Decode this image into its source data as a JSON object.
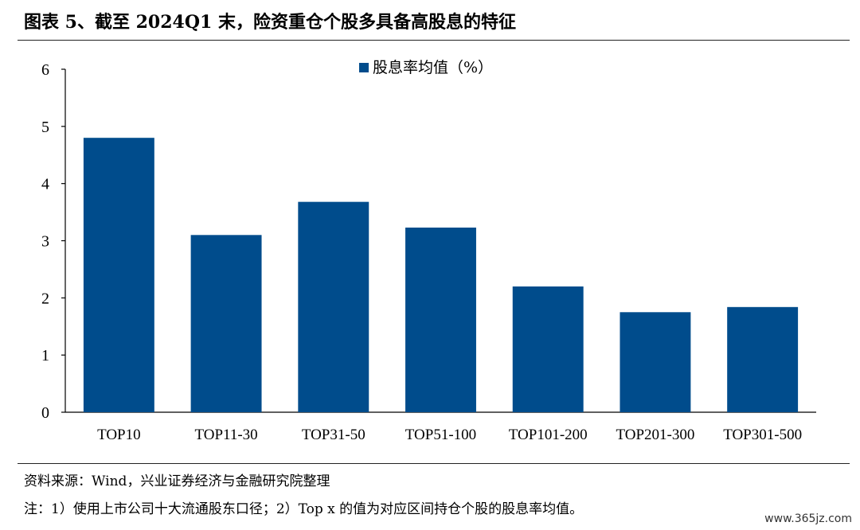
{
  "header": {
    "title": "图表 5、截至 2024Q1 末，险资重仓个股多具备高股息的特征"
  },
  "chart_data": {
    "type": "bar",
    "categories": [
      "TOP10",
      "TOP11-30",
      "TOP31-50",
      "TOP51-100",
      "TOP101-200",
      "TOP201-300",
      "TOP301-500"
    ],
    "series": [
      {
        "name": "股息率均值（%）",
        "values": [
          4.8,
          3.1,
          3.68,
          3.23,
          2.2,
          1.75,
          1.84
        ]
      }
    ],
    "ylim": [
      0,
      6
    ],
    "yticks": [
      "0",
      "1",
      "2",
      "3",
      "4",
      "5",
      "6"
    ],
    "bar_color": "#004C8C",
    "legend_position": "top-center",
    "grid": false
  },
  "footer": {
    "source": "资料来源：Wind，兴业证券经济与金融研究院整理",
    "note": "注：1）使用上市公司十大流通股东口径；2）Top x 的值为对应区间持仓个股的股息率均值。"
  },
  "watermark": "www.365jz.com"
}
